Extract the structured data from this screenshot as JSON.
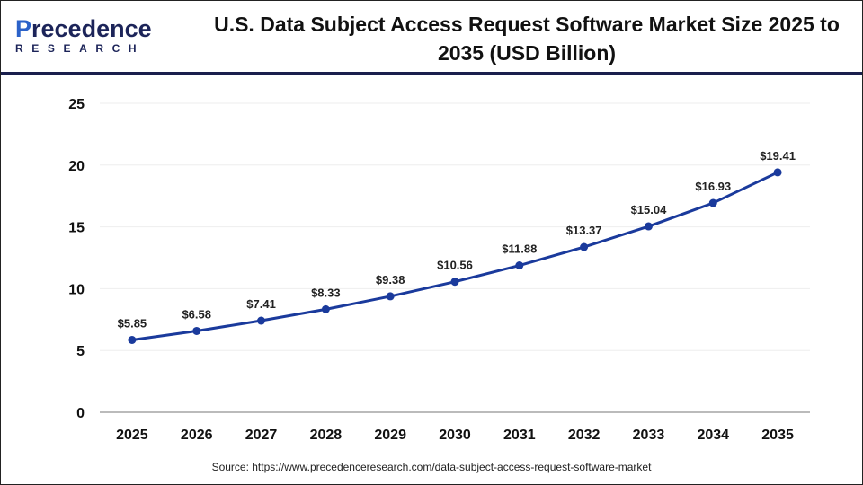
{
  "logo": {
    "line1_a": "P",
    "line1_b": "recedence",
    "line2": "RESEARCH"
  },
  "chart_data": {
    "type": "line",
    "title": "U.S. Data Subject Access Request Software Market Size 2025 to 2035 (USD Billion)",
    "categories": [
      "2025",
      "2026",
      "2027",
      "2028",
      "2029",
      "2030",
      "2031",
      "2032",
      "2033",
      "2034",
      "2035"
    ],
    "series": [
      {
        "values": [
          5.85,
          6.58,
          7.41,
          8.33,
          9.38,
          10.56,
          11.88,
          13.37,
          15.04,
          16.93,
          19.41
        ]
      }
    ],
    "data_labels": [
      "$5.85",
      "$6.58",
      "$7.41",
      "$8.33",
      "$9.38",
      "$10.56",
      "$11.88",
      "$13.37",
      "$15.04",
      "$16.93",
      "$19.41"
    ],
    "yticks": [
      0,
      5,
      10,
      15,
      20,
      25
    ],
    "ylim": [
      0,
      25
    ],
    "xlabel": "",
    "ylabel": "",
    "grid": true,
    "line_color": "#1a3a9c"
  },
  "source": "Source: https://www.precedenceresearch.com/data-subject-access-request-software-market"
}
